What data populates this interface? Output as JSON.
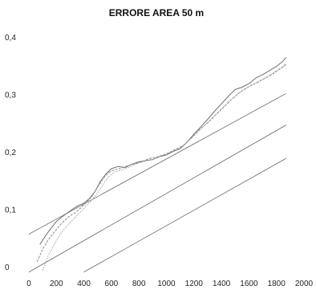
{
  "chart_data": {
    "type": "line",
    "title": "ERRORE AREA 50 m",
    "xlabel": "",
    "ylabel": "",
    "xlim": [
      0,
      2000
    ],
    "ylim": [
      0,
      0.4
    ],
    "x_ticks": [
      0,
      200,
      400,
      600,
      800,
      1000,
      1200,
      1400,
      1600,
      1800,
      2000
    ],
    "x_tick_labels": [
      "0",
      "200",
      "400",
      "600",
      "800",
      "1000",
      "1200",
      "1400",
      "1600",
      "1800",
      "2000"
    ],
    "y_ticks": [
      0,
      0.1,
      0.2,
      0.3,
      0.4
    ],
    "y_tick_labels": [
      "0",
      "0,1",
      "0,2",
      "0,3",
      "0,4"
    ],
    "grid": false,
    "legend": "none",
    "reference_lines": [
      {
        "x": [
          0,
          1870
        ],
        "y": [
          0.058,
          0.303
        ]
      },
      {
        "x": [
          0,
          1870
        ],
        "y": [
          -0.008,
          0.248
        ]
      },
      {
        "x": [
          400,
          1870
        ],
        "y": [
          -0.008,
          0.19
        ]
      }
    ],
    "series": [
      {
        "color": "#6f6f6f",
        "x": [
          80,
          120,
          160,
          200,
          240,
          280,
          320,
          360,
          400,
          440,
          480,
          520,
          560,
          600,
          650,
          700,
          750,
          800,
          850,
          900,
          950,
          1000,
          1050,
          1100,
          1150,
          1200,
          1250,
          1300,
          1350,
          1400,
          1450,
          1500,
          1550,
          1600,
          1650,
          1700,
          1750,
          1800,
          1850,
          1870
        ],
        "y": [
          0.04,
          0.055,
          0.068,
          0.08,
          0.088,
          0.095,
          0.102,
          0.108,
          0.112,
          0.12,
          0.132,
          0.15,
          0.163,
          0.172,
          0.176,
          0.174,
          0.18,
          0.184,
          0.186,
          0.188,
          0.193,
          0.196,
          0.202,
          0.207,
          0.218,
          0.232,
          0.245,
          0.258,
          0.272,
          0.285,
          0.298,
          0.31,
          0.314,
          0.32,
          0.33,
          0.336,
          0.343,
          0.35,
          0.36,
          0.366
        ]
      },
      {
        "color": "#8a8a8a",
        "x": [
          60,
          100,
          140,
          180,
          220,
          260,
          300,
          340,
          380,
          420,
          460,
          500,
          540,
          580,
          620,
          660,
          700,
          760,
          820,
          880,
          940,
          1000,
          1060,
          1120,
          1180,
          1240,
          1300,
          1360,
          1420,
          1480,
          1540,
          1600,
          1660,
          1720,
          1780,
          1840,
          1870
        ],
        "y": [
          0.01,
          0.032,
          0.048,
          0.06,
          0.072,
          0.082,
          0.09,
          0.096,
          0.104,
          0.114,
          0.124,
          0.14,
          0.155,
          0.165,
          0.17,
          0.172,
          0.176,
          0.18,
          0.184,
          0.19,
          0.193,
          0.198,
          0.205,
          0.212,
          0.225,
          0.24,
          0.252,
          0.266,
          0.28,
          0.294,
          0.306,
          0.315,
          0.322,
          0.33,
          0.338,
          0.348,
          0.355
        ]
      },
      {
        "color": "#a0a0a0",
        "x": [
          100,
          140,
          180,
          220,
          260,
          300,
          340,
          380,
          420,
          460,
          500,
          540,
          580,
          620,
          680,
          740,
          800,
          860,
          920,
          980,
          1040,
          1100,
          1160,
          1220,
          1280,
          1340,
          1400,
          1460,
          1520,
          1580,
          1640,
          1700,
          1760,
          1820,
          1870
        ],
        "y": [
          -0.005,
          0.02,
          0.038,
          0.055,
          0.068,
          0.078,
          0.088,
          0.098,
          0.108,
          0.118,
          0.13,
          0.145,
          0.158,
          0.166,
          0.17,
          0.176,
          0.182,
          0.186,
          0.19,
          0.196,
          0.202,
          0.208,
          0.22,
          0.234,
          0.248,
          0.262,
          0.276,
          0.29,
          0.302,
          0.312,
          0.32,
          0.328,
          0.336,
          0.346,
          0.352
        ]
      }
    ],
    "colors": {
      "axis": "#333333",
      "reference": "#7a7a7a",
      "background": "#ffffff"
    }
  }
}
